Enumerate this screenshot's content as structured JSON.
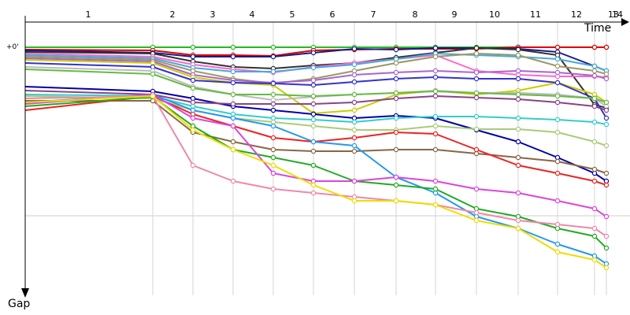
{
  "chart_data": {
    "type": "line",
    "title": "",
    "xlabel": "Time",
    "ylabel": "Gap",
    "y_tick_labels": [
      "+0'"
    ],
    "categories": [
      "1",
      "2",
      "3",
      "4",
      "5",
      "6",
      "7",
      "8",
      "9",
      "10",
      "11",
      "12",
      "13",
      "14"
    ],
    "grid": "vertical lines at each lap, horizontal line at mid gap",
    "series": [
      {
        "color": "#22bb22",
        "values": [
          0,
          0,
          0,
          0,
          0,
          0,
          0,
          0,
          0,
          0,
          0,
          0,
          0,
          0
        ]
      },
      {
        "color": "#dd0000",
        "values": [
          -3,
          -4,
          -10,
          -10,
          -11,
          -4,
          -3,
          -2,
          -2,
          -2,
          0,
          0,
          0,
          0
        ]
      },
      {
        "color": "#1a1a8a",
        "values": [
          -4,
          -7,
          -12,
          -12,
          -12,
          -7,
          -2,
          -3,
          -1,
          -1,
          -2,
          -6,
          -24,
          -30
        ]
      },
      {
        "color": "#333333",
        "values": [
          -6,
          -8,
          -18,
          -25,
          -27,
          -23,
          -20,
          -13,
          -7,
          -1,
          -3,
          -10,
          -73,
          -77
        ]
      },
      {
        "color": "#ff66cc",
        "values": [
          -8,
          -12,
          -22,
          -28,
          -32,
          -25,
          -20,
          -15,
          -10,
          -30,
          -35,
          -37,
          -37,
          -38
        ]
      },
      {
        "color": "#44aadd",
        "values": [
          -10,
          -14,
          -26,
          -31,
          -31,
          -26,
          -22,
          -15,
          -8,
          -10,
          -12,
          -15,
          -24,
          -30
        ]
      },
      {
        "color": "#999966",
        "values": [
          -12,
          -16,
          -30,
          -40,
          -46,
          -40,
          -30,
          -20,
          -12,
          -8,
          -10,
          -24,
          -30,
          -34
        ]
      },
      {
        "color": "#aa66cc",
        "values": [
          -14,
          -18,
          -35,
          -42,
          -45,
          -42,
          -35,
          -32,
          -30,
          -32,
          -30,
          -32,
          -36,
          -40
        ]
      },
      {
        "color": "#cccc00",
        "values": [
          -16,
          -20,
          -38,
          -45,
          -48,
          -84,
          -80,
          -60,
          -55,
          -60,
          -55,
          -45,
          -60,
          -70
        ]
      },
      {
        "color": "#3333cc",
        "values": [
          -20,
          -25,
          -42,
          -45,
          -46,
          -48,
          -44,
          -40,
          -38,
          -40,
          -40,
          -45,
          -65,
          -90
        ]
      },
      {
        "color": "#bbbbbb",
        "values": [
          -25,
          -30,
          -50,
          -60,
          -67,
          -63,
          -60,
          -58,
          -55,
          -58,
          -58,
          -60,
          -65,
          -75
        ]
      },
      {
        "color": "#66bb44",
        "values": [
          -28,
          -34,
          -52,
          -60,
          -60,
          -62,
          -60,
          -58,
          -56,
          -58,
          -60,
          -62,
          -65,
          -70
        ]
      },
      {
        "color": "#0000aa",
        "values": [
          -50,
          -56,
          -65,
          -75,
          -80,
          -85,
          -90,
          -87,
          -90,
          -105,
          -120,
          -140,
          -160,
          -170
        ]
      },
      {
        "color": "#884488",
        "values": [
          -55,
          -60,
          -70,
          -72,
          -72,
          -72,
          -70,
          -65,
          -62,
          -64,
          -66,
          -70,
          -75,
          -80
        ]
      },
      {
        "color": "#33cccc",
        "values": [
          -60,
          -62,
          -75,
          -85,
          -90,
          -92,
          -95,
          -90,
          -88,
          -88,
          -90,
          -92,
          -95,
          -98
        ]
      },
      {
        "color": "#aacc77",
        "values": [
          -62,
          -65,
          -80,
          -90,
          -95,
          -100,
          -105,
          -105,
          -100,
          -104,
          -104,
          -108,
          -120,
          -125
        ]
      },
      {
        "color": "#886644",
        "values": [
          -68,
          -68,
          -108,
          -120,
          -130,
          -132,
          -132,
          -130,
          -130,
          -135,
          -140,
          -145,
          -155,
          -160
        ]
      },
      {
        "color": "#ee2222",
        "values": [
          -80,
          -62,
          -85,
          -100,
          -115,
          -120,
          -115,
          -108,
          -110,
          -130,
          -150,
          -160,
          -170,
          -175
        ]
      },
      {
        "color": "#2299ee",
        "values": [
          -70,
          -60,
          -80,
          -90,
          -100,
          -120,
          -125,
          -165,
          -185,
          -215,
          -230,
          -250,
          -265,
          -275
        ]
      },
      {
        "color": "#22aa22",
        "values": [
          -75,
          -63,
          -100,
          -130,
          -140,
          -150,
          -170,
          -175,
          -180,
          -205,
          -215,
          -230,
          -240,
          -255
        ]
      },
      {
        "color": "#dd44dd",
        "values": [
          -72,
          -60,
          -90,
          -100,
          -160,
          -170,
          -170,
          -165,
          -170,
          -180,
          -185,
          -195,
          -205,
          -215
        ]
      },
      {
        "color": "#ee88aa",
        "values": [
          -65,
          -62,
          -150,
          -170,
          -180,
          -185,
          -190,
          -195,
          -200,
          -210,
          -220,
          -225,
          -230,
          -240
        ]
      },
      {
        "color": "#eedd00",
        "values": [
          -70,
          -62,
          -105,
          -130,
          -150,
          -175,
          -195,
          -195,
          -200,
          -220,
          -230,
          -260,
          -270,
          -280
        ]
      }
    ]
  }
}
